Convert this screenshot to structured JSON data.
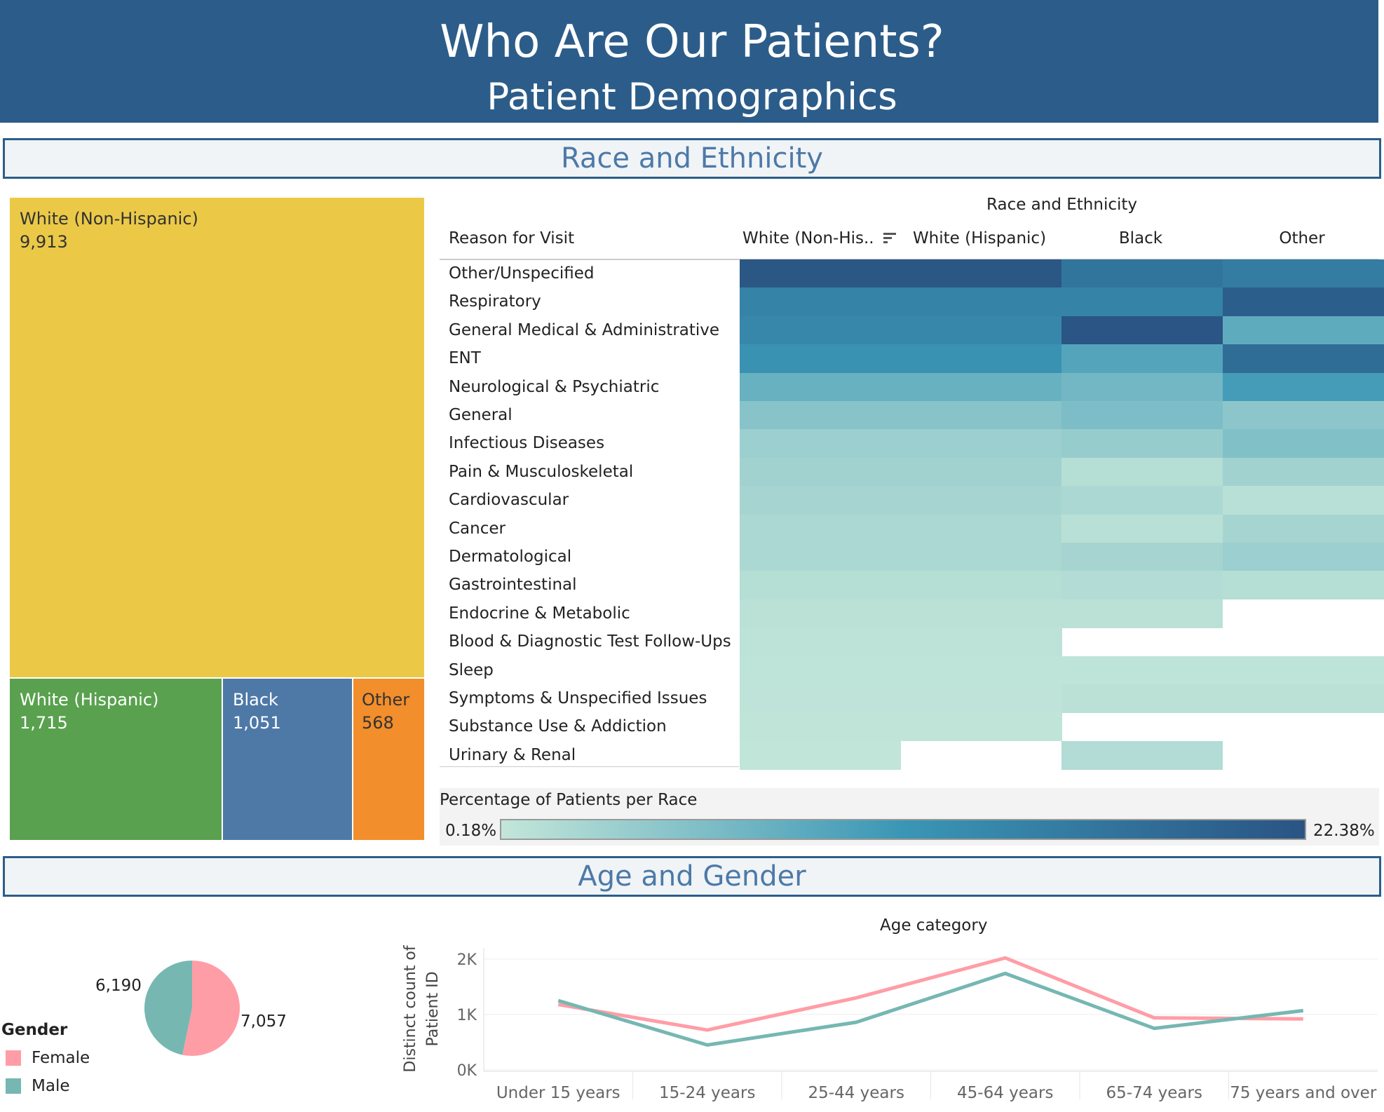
{
  "header": {
    "title": "Who Are Our Patients?",
    "subtitle": "Patient Demographics"
  },
  "sections": {
    "race": "Race and Ethnicity",
    "age_gender": "Age and Gender"
  },
  "treemap": {
    "items": [
      {
        "label": "White (Non-Hispanic)",
        "value": "9,913",
        "color": "#ebc947"
      },
      {
        "label": "White (Hispanic)",
        "value": "1,715",
        "color": "#59a14f"
      },
      {
        "label": "Black",
        "value": "1,051",
        "color": "#4e79a7"
      },
      {
        "label": "Other",
        "value": "568",
        "color": "#f28e2b"
      }
    ]
  },
  "heatmap": {
    "col_group_title": "Race and Ethnicity",
    "row_header": "Reason for Visit",
    "columns": [
      "White (Non-His..",
      "White (Hispanic)",
      "Black",
      "Other"
    ],
    "rows": [
      "Other/Unspecified",
      "Respiratory",
      "General Medical & Administrative",
      "ENT",
      "Neurological & Psychiatric",
      "General",
      "Infectious Diseases",
      "Pain & Musculoskeletal",
      "Cardiovascular",
      "Cancer",
      "Dermatological",
      "Gastrointestinal",
      "Endocrine & Metabolic",
      "Blood & Diagnostic Test Follow-Ups",
      "Sleep",
      "Symptoms & Unspecified Issues",
      "Substance Use & Addiction",
      "Urinary & Renal"
    ],
    "values": [
      [
        22.0,
        22.0,
        18.0,
        17.0
      ],
      [
        16.0,
        16.0,
        16.0,
        21.0
      ],
      [
        15.5,
        15.5,
        22.2,
        10.0
      ],
      [
        14.0,
        14.0,
        11.0,
        19.0
      ],
      [
        9.0,
        9.0,
        8.0,
        12.5
      ],
      [
        6.0,
        6.0,
        7.0,
        5.5
      ],
      [
        4.0,
        4.0,
        4.5,
        6.5
      ],
      [
        3.5,
        3.5,
        1.5,
        3.5
      ],
      [
        3.0,
        3.0,
        2.5,
        1.2
      ],
      [
        2.5,
        2.5,
        1.2,
        3.0
      ],
      [
        2.5,
        2.5,
        3.0,
        4.0
      ],
      [
        1.5,
        1.5,
        1.8,
        1.5
      ],
      [
        1.0,
        1.0,
        1.0,
        null
      ],
      [
        0.8,
        0.8,
        null,
        null
      ],
      [
        0.7,
        0.7,
        0.7,
        0.7
      ],
      [
        0.6,
        0.6,
        1.0,
        1.0
      ],
      [
        0.5,
        0.5,
        null,
        null
      ],
      [
        0.4,
        null,
        1.8,
        null
      ]
    ],
    "legend_title": "Percentage of Patients per Race",
    "legend_min": "0.18%",
    "legend_max": "22.38%",
    "color_low": "#c3e6d9",
    "color_high": "#2a5483"
  },
  "pie": {
    "title": "Gender",
    "slices": [
      {
        "label": "Female",
        "value": 7057,
        "text": "7,057",
        "color": "#ff9da7"
      },
      {
        "label": "Male",
        "value": 6190,
        "text": "6,190",
        "color": "#76b7b2"
      }
    ]
  },
  "chart_data": {
    "type": "line",
    "title": "Age category",
    "ylabel": "Distinct count of Patient ID",
    "categories": [
      "Under 15 years",
      "15-24 years",
      "25-44 years",
      "45-64 years",
      "65-74 years",
      "75 years and over"
    ],
    "ylim": [
      0,
      2200
    ],
    "yticks": [
      "2K",
      "1K",
      "0K"
    ],
    "series": [
      {
        "name": "Female",
        "values": [
          1180,
          720,
          1300,
          2020,
          940,
          920
        ],
        "color": "#ff9da7"
      },
      {
        "name": "Male",
        "values": [
          1250,
          450,
          860,
          1740,
          750,
          1070
        ],
        "color": "#76b7b2"
      }
    ]
  }
}
